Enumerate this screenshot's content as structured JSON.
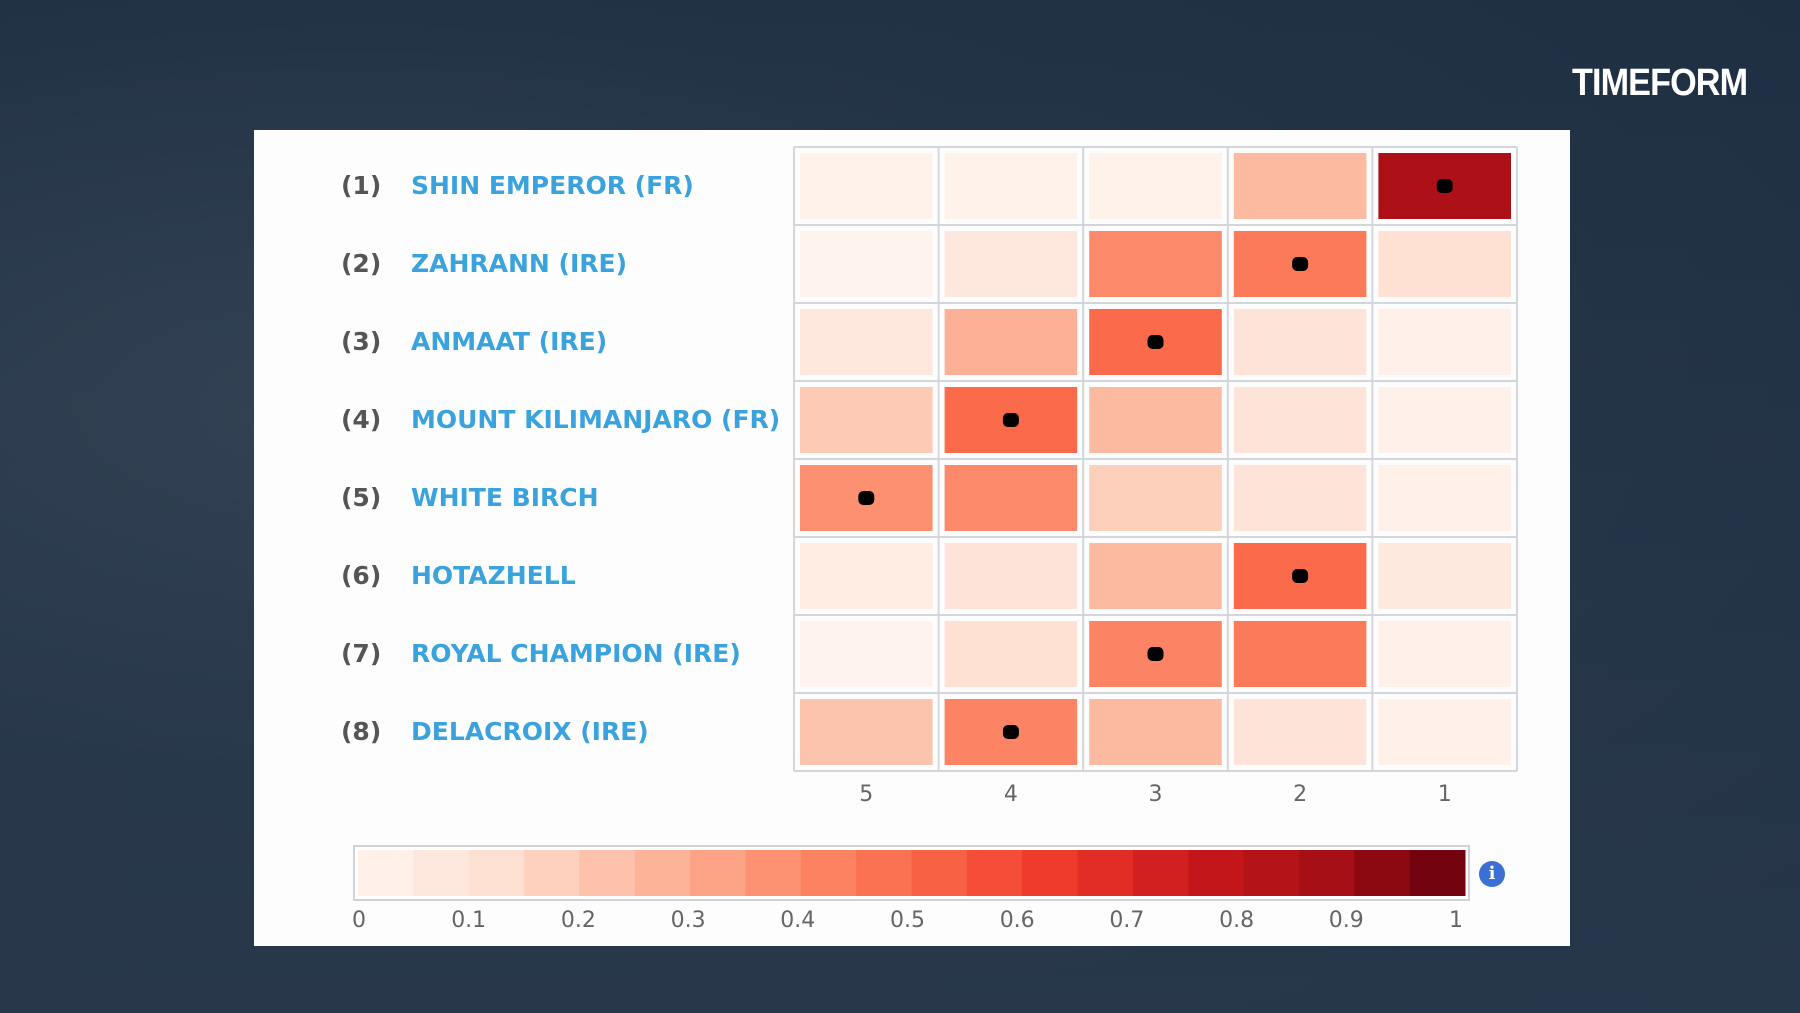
{
  "brand": {
    "logo_text": "TIMEFORM"
  },
  "chart_data": {
    "type": "heatmap",
    "title": "",
    "xlabel": "",
    "ylabel": "",
    "x_categories": [
      "5",
      "4",
      "3",
      "2",
      "1"
    ],
    "rows": [
      {
        "number": "(1)",
        "name": "SHIN EMPEROR (FR)",
        "values": [
          0.02,
          0.02,
          0.02,
          0.25,
          0.85
        ],
        "marked": "1"
      },
      {
        "number": "(2)",
        "name": "ZAHRANN (IRE)",
        "values": [
          0.01,
          0.08,
          0.4,
          0.45,
          0.12
        ],
        "marked": "2"
      },
      {
        "number": "(3)",
        "name": "ANMAAT (IRE)",
        "values": [
          0.08,
          0.28,
          0.5,
          0.1,
          0.03
        ],
        "marked": "3"
      },
      {
        "number": "(4)",
        "name": "MOUNT KILIMANJARO (FR)",
        "values": [
          0.2,
          0.5,
          0.25,
          0.1,
          0.03
        ],
        "marked": "4"
      },
      {
        "number": "(5)",
        "name": "WHITE BIRCH",
        "values": [
          0.38,
          0.4,
          0.18,
          0.1,
          0.03
        ],
        "marked": "5"
      },
      {
        "number": "(6)",
        "name": "HOTAZHELL",
        "values": [
          0.05,
          0.1,
          0.25,
          0.5,
          0.07
        ],
        "marked": "2"
      },
      {
        "number": "(7)",
        "name": "ROYAL CHAMPION (IRE)",
        "values": [
          0.01,
          0.12,
          0.42,
          0.45,
          0.03
        ],
        "marked": "3"
      },
      {
        "number": "(8)",
        "name": "DELACROIX (IRE)",
        "values": [
          0.22,
          0.42,
          0.25,
          0.1,
          0.03
        ],
        "marked": "4"
      }
    ],
    "colorscale": "Reds",
    "colorbar": {
      "range": [
        0,
        1
      ],
      "ticks": [
        "0",
        "0.1",
        "0.2",
        "0.3",
        "0.4",
        "0.5",
        "0.6",
        "0.7",
        "0.8",
        "0.9",
        "1"
      ],
      "bands": 20
    },
    "grid": true
  },
  "info_icon": "info-icon",
  "info_glyph": "i"
}
